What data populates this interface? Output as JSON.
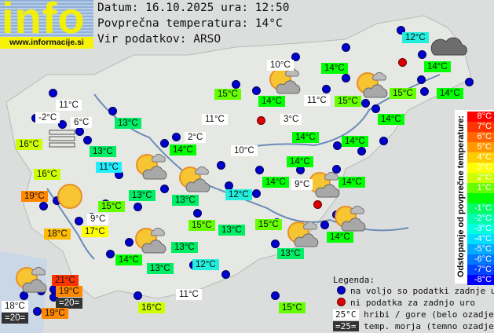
{
  "logo": {
    "text": "info",
    "site": "www.informacije.si"
  },
  "header": {
    "date_line": "Datum: 16.10.2025 ura: 12:50",
    "avg_line": "Povprečna temperatura: 14°C",
    "source_line": "Vir podatkov: ARSO"
  },
  "labels": [
    {
      "t": "12°C",
      "c": "#22eedd"
    },
    {
      "t": "14°C",
      "c": "#00ff00"
    },
    {
      "t": "14°C",
      "c": "#00ff00"
    },
    {
      "t": "10°C",
      "c": "#ffffff"
    },
    {
      "t": "15°C",
      "c": "#66ff00"
    },
    {
      "t": "14°C",
      "c": "#00ff00"
    },
    {
      "t": "11°C",
      "c": "#ffffff"
    },
    {
      "t": "15°C",
      "c": "#66ff00"
    },
    {
      "t": "15°C",
      "c": "#66ff00"
    },
    {
      "t": "14°C",
      "c": "#00ff00"
    },
    {
      "t": "3°C",
      "c": "#ffffff"
    },
    {
      "t": "14°C",
      "c": "#00ff00"
    },
    {
      "t": "11°C",
      "c": "#ffffff"
    },
    {
      "t": "-2°C",
      "c": "#ffffff"
    },
    {
      "t": "6°C",
      "c": "#ffffff"
    },
    {
      "t": "13°C",
      "c": "#00ee66"
    },
    {
      "t": "11°C",
      "c": "#ffffff"
    },
    {
      "t": "2°C",
      "c": "#ffffff"
    },
    {
      "t": "14°C",
      "c": "#00ff00"
    },
    {
      "t": "14°C",
      "c": "#00ff00"
    },
    {
      "t": "16°C",
      "c": "#ccff00"
    },
    {
      "t": "13°C",
      "c": "#00ee66"
    },
    {
      "t": "14°C",
      "c": "#00ff00"
    },
    {
      "t": "10°C",
      "c": "#ffffff"
    },
    {
      "t": "14°C",
      "c": "#00ff00"
    },
    {
      "t": "11°C",
      "c": "#22eeff"
    },
    {
      "t": "16°C",
      "c": "#ccff00"
    },
    {
      "t": "14°C",
      "c": "#00ff00"
    },
    {
      "t": "9°C",
      "c": "#ffffff"
    },
    {
      "t": "14°C",
      "c": "#00ff00"
    },
    {
      "t": "19°C",
      "c": "#ff8800"
    },
    {
      "t": "13°C",
      "c": "#00ee66"
    },
    {
      "t": "13°C",
      "c": "#00ee66"
    },
    {
      "t": "12°C",
      "c": "#22eedd"
    },
    {
      "t": "15°C",
      "c": "#66ff00"
    },
    {
      "t": "9°C",
      "c": "#ffffff"
    },
    {
      "t": "18°C",
      "c": "#ffbb00"
    },
    {
      "t": "17°C",
      "c": "#ffff00"
    },
    {
      "t": "15°C",
      "c": "#66ff00"
    },
    {
      "t": "13°C",
      "c": "#00ee66"
    },
    {
      "t": "15°C",
      "c": "#66ff00"
    },
    {
      "t": "14°C",
      "c": "#00ff00"
    },
    {
      "t": "13°C",
      "c": "#00ee66"
    },
    {
      "t": "13°C",
      "c": "#00ee66"
    },
    {
      "t": "14°C",
      "c": "#00ff00"
    },
    {
      "t": "13°C",
      "c": "#00ee66"
    },
    {
      "t": "12°C",
      "c": "#22eedd"
    },
    {
      "t": "21°C",
      "c": "#ff3300"
    },
    {
      "t": "19°C",
      "c": "#ff8800"
    },
    {
      "t": "=20=",
      "c": "#333333"
    },
    {
      "t": "18°C",
      "c": "#ffffff"
    },
    {
      "t": "=20=",
      "c": "#333333"
    },
    {
      "t": "19°C",
      "c": "#ff8800"
    },
    {
      "t": "11°C",
      "c": "#ffffff"
    },
    {
      "t": "16°C",
      "c": "#ccff00"
    },
    {
      "t": "15°C",
      "c": "#66ff00"
    }
  ],
  "scale": {
    "title": "Odstopanje od povprečne temperature:",
    "rows": [
      {
        "t": "8°C",
        "c": "#ff0000"
      },
      {
        "t": "7°C",
        "c": "#ff3300"
      },
      {
        "t": "6°C",
        "c": "#ff6600"
      },
      {
        "t": "5°C",
        "c": "#ff9900"
      },
      {
        "t": "4°C",
        "c": "#ffcc00"
      },
      {
        "t": "3°C",
        "c": "#ffff00"
      },
      {
        "t": "2°C",
        "c": "#ccff00"
      },
      {
        "t": "1°C",
        "c": "#66ff00"
      },
      {
        "t": "",
        "c": "#00ff00"
      },
      {
        "t": "-1°C",
        "c": "#00ff66"
      },
      {
        "t": "-2°C",
        "c": "#00ffaa"
      },
      {
        "t": "-3°C",
        "c": "#00ffdd"
      },
      {
        "t": "-4°C",
        "c": "#00ddff"
      },
      {
        "t": "-5°C",
        "c": "#00aaff"
      },
      {
        "t": "-6°C",
        "c": "#0077ff"
      },
      {
        "t": "-7°C",
        "c": "#0044ff"
      },
      {
        "t": "-8°C",
        "c": "#0000ff"
      }
    ]
  },
  "legend": {
    "title": "Legenda:",
    "blue": "na voljo so podatki zadnje ure",
    "red": "ni podatka za zadnjo uro",
    "hill_sample": "25°C",
    "hill_text": "hribi / gore (belo ozadje)",
    "sea_sample": "=25=",
    "sea_text": "temp. morja (temno ozadje)"
  }
}
